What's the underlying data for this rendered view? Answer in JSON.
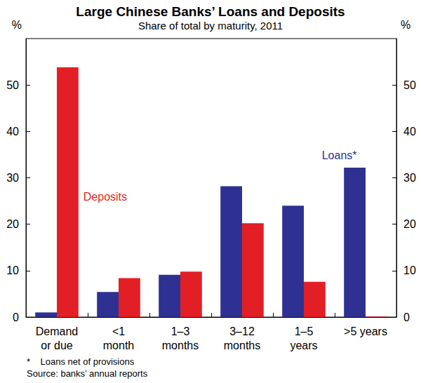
{
  "chart_data": {
    "type": "bar",
    "title": "Large Chinese Banks’ Loans and Deposits",
    "subtitle": "Share of total by maturity, 2011",
    "ylabel": "%",
    "y2label": "%",
    "categories": [
      "Demand\nor due",
      "<1\nmonth",
      "1–3\nmonths",
      "3–12\nmonths",
      "1–5\nyears",
      ">5 years"
    ],
    "series": [
      {
        "name": "Loans*",
        "color": "#2e3192",
        "values": [
          1.0,
          5.4,
          9.1,
          28.2,
          24.0,
          32.2
        ]
      },
      {
        "name": "Deposits",
        "color": "#e31f26",
        "values": [
          53.8,
          8.4,
          9.8,
          20.2,
          7.6,
          0.1
        ]
      }
    ],
    "ylim": [
      0,
      60
    ],
    "yticks": [
      0,
      10,
      20,
      30,
      40,
      50
    ],
    "y2lim": [
      0,
      60
    ],
    "y2ticks": [
      0,
      10,
      20,
      30,
      40,
      50
    ],
    "grid": false,
    "notes": [
      "*    Loans net of provisions",
      "Source: banks’ annual reports"
    ]
  }
}
